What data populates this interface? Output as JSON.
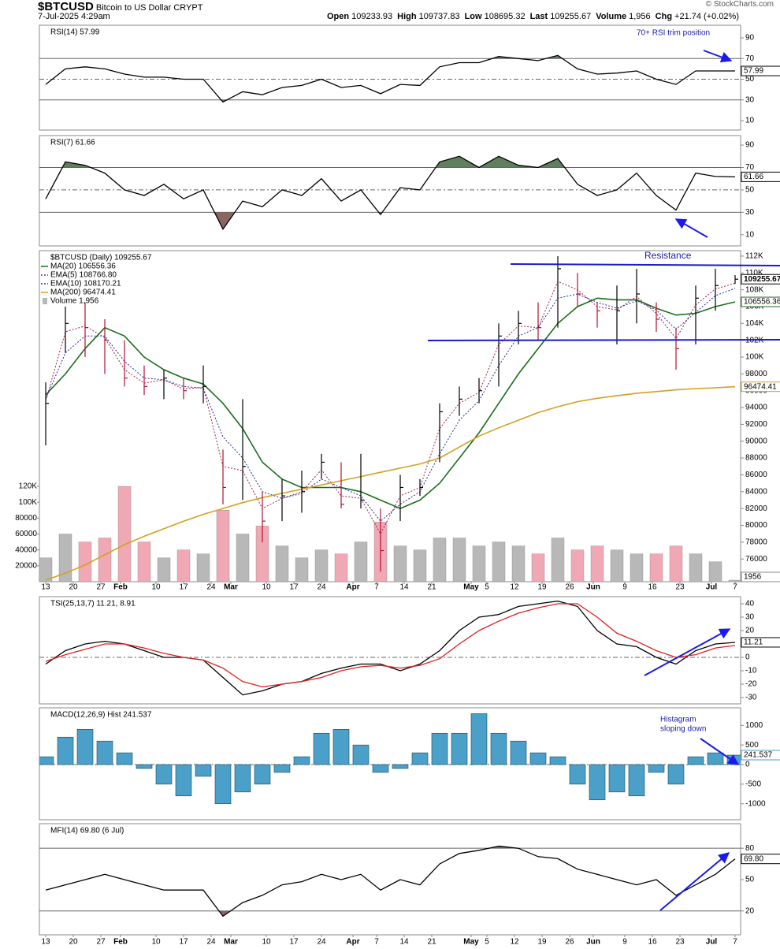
{
  "header": {
    "symbol": "$BTCUSD",
    "name": "Bitcoin to US Dollar",
    "exchange": "CRYPT",
    "date": "7-Jul-2025 4:29am",
    "stats": [
      {
        "label": "Open",
        "value": "109233.93"
      },
      {
        "label": "High",
        "value": "109737.83"
      },
      {
        "label": "Low",
        "value": "108695.32"
      },
      {
        "label": "Last",
        "value": "109255.67"
      },
      {
        "label": "Volume",
        "value": "1,956"
      },
      {
        "label": "Chg",
        "value": "+21.74 (+0.02%)"
      }
    ],
    "copyright": "© StockCharts.com"
  },
  "x_axis": {
    "x": [
      0,
      5,
      10,
      15,
      20,
      25,
      30,
      35,
      40,
      45,
      50,
      55,
      60,
      65,
      70,
      75,
      80,
      85,
      90,
      95,
      100,
      105,
      110,
      115,
      120,
      125,
      130,
      135,
      140,
      145,
      150,
      155,
      160,
      165,
      170,
      175
    ],
    "xlim": [
      -1.6,
      176.4
    ],
    "xticks": [
      {
        "value": 0,
        "label": "13"
      },
      {
        "value": 7,
        "label": "20"
      },
      {
        "value": 14,
        "label": "27"
      },
      {
        "value": 19,
        "label": "Feb"
      },
      {
        "value": 28,
        "label": "10"
      },
      {
        "value": 35,
        "label": "17"
      },
      {
        "value": 42,
        "label": "24"
      },
      {
        "value": 47,
        "label": "Mar"
      },
      {
        "value": 56,
        "label": "10"
      },
      {
        "value": 63,
        "label": "17"
      },
      {
        "value": 70,
        "label": "24"
      },
      {
        "value": 78,
        "label": "Apr"
      },
      {
        "value": 84,
        "label": "7"
      },
      {
        "value": 91,
        "label": "14"
      },
      {
        "value": 98,
        "label": "21"
      },
      {
        "value": 108,
        "label": "May"
      },
      {
        "value": 112,
        "label": "5"
      },
      {
        "value": 119,
        "label": "12"
      },
      {
        "value": 126,
        "label": "19"
      },
      {
        "value": 133,
        "label": "26"
      },
      {
        "value": 139,
        "label": "Jun"
      },
      {
        "value": 147,
        "label": "9"
      },
      {
        "value": 154,
        "label": "16"
      },
      {
        "value": 161,
        "label": "23"
      },
      {
        "value": 169,
        "label": "Jul"
      },
      {
        "value": 175,
        "label": "7"
      }
    ]
  },
  "chart_data": [
    {
      "type": "line",
      "title": "RSI(14) 57.99",
      "ylim": [
        0.9,
        102.2
      ],
      "yticks": [
        10,
        30,
        50,
        70,
        90
      ],
      "bands": [
        30,
        70
      ],
      "midline": 50,
      "fills": {
        "above": "#5f7f5f",
        "below": "#8c6560"
      },
      "annotations": [
        "70+ RSI trim position"
      ],
      "series": [
        {
          "color": "#000000",
          "last_label": true,
          "values": [
            45,
            60,
            62,
            60,
            55,
            52,
            52,
            50,
            50,
            28,
            38,
            35,
            42,
            44,
            50,
            42,
            44,
            36,
            45,
            44,
            62,
            66,
            66,
            72,
            70,
            68,
            73,
            60,
            55,
            56,
            58,
            50,
            45,
            58,
            58,
            57.99
          ]
        }
      ]
    },
    {
      "type": "line",
      "title": "RSI(7) 61.66",
      "ylim": [
        0,
        98.5
      ],
      "yticks": [
        10,
        30,
        50,
        70,
        90
      ],
      "bands": [
        30,
        70
      ],
      "midline": 50,
      "fills": {
        "above": "#5f7f5f",
        "below": "#8c6560"
      },
      "series": [
        {
          "color": "#000000",
          "last_label": true,
          "values": [
            42,
            75,
            72,
            65,
            50,
            45,
            55,
            42,
            50,
            15,
            40,
            35,
            50,
            45,
            60,
            40,
            50,
            28,
            52,
            50,
            75,
            80,
            70,
            80,
            72,
            70,
            78,
            55,
            45,
            50,
            65,
            45,
            32,
            65,
            62,
            61.66
          ]
        }
      ]
    },
    {
      "type": "ohlc",
      "title": "$BTCUSD (Daily) 109255.67",
      "ylim": [
        73300,
        112650
      ],
      "last_label": true,
      "annotations": [
        "Resistance"
      ],
      "yticks": [
        76000,
        78000,
        80000,
        82000,
        84000,
        86000,
        88000,
        90000,
        92000,
        94000,
        96000,
        98000,
        {
          "value": 100000,
          "label": "100K"
        },
        {
          "value": 102000,
          "label": "102K"
        },
        {
          "value": 104000,
          "label": "104K"
        },
        {
          "value": 106000,
          "label": "106K"
        },
        {
          "value": 108000,
          "label": "108K"
        },
        {
          "value": 110000,
          "label": "110K"
        },
        {
          "value": 112000,
          "label": "112K"
        }
      ],
      "up_color": "#000000",
      "down_color": "#b01030",
      "close": [
        94500,
        104000,
        103500,
        102000,
        97500,
        96500,
        97500,
        96000,
        96500,
        84500,
        87000,
        80500,
        83500,
        84000,
        87500,
        82500,
        83000,
        77000,
        84500,
        84500,
        93500,
        95000,
        96000,
        102500,
        104000,
        103500,
        110500,
        107500,
        105500,
        105500,
        107500,
        104500,
        101000,
        107000,
        108500,
        109255.67
      ],
      "high": [
        97000,
        106000,
        106500,
        104500,
        102000,
        99000,
        98500,
        97500,
        99000,
        89000,
        95000,
        84000,
        85500,
        86500,
        88500,
        87500,
        88500,
        82000,
        86000,
        85500,
        94500,
        96500,
        97500,
        104000,
        105500,
        106500,
        112000,
        110000,
        106500,
        108500,
        110500,
        106500,
        103500,
        108500,
        110500,
        109737.83
      ],
      "low": [
        89500,
        100500,
        100000,
        98000,
        96500,
        95500,
        95000,
        95000,
        94500,
        82500,
        83000,
        78000,
        80500,
        81500,
        85500,
        82000,
        82000,
        74500,
        80500,
        83500,
        87500,
        93000,
        94500,
        96500,
        101500,
        102000,
        103500,
        106000,
        103500,
        101500,
        104000,
        103000,
        98500,
        101500,
        105500,
        108695.32
      ],
      "series": [
        {
          "name": "MA(20) 106556.36",
          "color": "#1a6e1a",
          "last_label": true,
          "values": [
            95500,
            98000,
            101000,
            103500,
            102500,
            100000,
            98500,
            97500,
            96800,
            94500,
            91500,
            87500,
            85500,
            84500,
            84500,
            84500,
            84000,
            83000,
            82000,
            83000,
            85000,
            88000,
            91000,
            94500,
            98000,
            101000,
            104000,
            106000,
            107000,
            106800,
            106800,
            105800,
            105000,
            105200,
            106000,
            106556.36
          ]
        },
        {
          "name": "EMA(5) 108766.80",
          "color": "#a0204a",
          "dash": true,
          "values": [
            94800,
            103000,
            103700,
            102300,
            98500,
            96900,
            97300,
            96200,
            96400,
            87000,
            86500,
            82000,
            83200,
            84000,
            86600,
            83500,
            83200,
            79000,
            83500,
            84500,
            91500,
            94500,
            95800,
            101500,
            103700,
            103500,
            109000,
            108000,
            106000,
            105600,
            107200,
            105200,
            102200,
            106200,
            108100,
            108766.8
          ]
        },
        {
          "name": "EMA(10) 108170.21",
          "color": "#2a2a9a",
          "dash": true,
          "values": [
            95000,
            100500,
            102500,
            102500,
            99500,
            97500,
            97300,
            96500,
            96300,
            90500,
            88000,
            84000,
            83200,
            83800,
            85500,
            84500,
            83500,
            80500,
            82500,
            84000,
            88500,
            92500,
            94800,
            99000,
            102500,
            103500,
            107000,
            107500,
            106500,
            105800,
            106700,
            105600,
            103300,
            105300,
            107300,
            108170.21
          ]
        },
        {
          "name": "MA(200) 96474.41",
          "color": "#d4a020",
          "last_label": true,
          "values": [
            73500,
            74300,
            75300,
            76500,
            77700,
            78700,
            79600,
            80500,
            81300,
            82000,
            82700,
            83300,
            83800,
            84300,
            84800,
            85300,
            85800,
            86300,
            86800,
            87300,
            88000,
            89300,
            90600,
            91600,
            92500,
            93400,
            94100,
            94700,
            95100,
            95400,
            95700,
            95900,
            96100,
            96250,
            96350,
            96474.41
          ]
        }
      ],
      "volume": {
        "name": "Volume 1,956",
        "up_color": "#b8b8b8",
        "down_color": "#f0a8b4",
        "last_label": true,
        "ylim": [
          0,
          122000
        ],
        "yticks": [
          20000,
          40000,
          60000,
          80000,
          {
            "value": 100000,
            "label": "100K"
          },
          {
            "value": 120000,
            "label": "120K"
          }
        ],
        "values": [
          30000,
          60000,
          50000,
          55000,
          120000,
          50000,
          30000,
          40000,
          35000,
          90000,
          60000,
          70000,
          45000,
          30000,
          40000,
          35000,
          50000,
          75000,
          45000,
          40000,
          55000,
          55000,
          45000,
          50000,
          45000,
          35000,
          55000,
          40000,
          45000,
          40000,
          35000,
          35000,
          45000,
          35000,
          25000,
          1956
        ]
      }
    },
    {
      "type": "line",
      "title": "TSI(25,13,7) 11.21, 8.91",
      "ylim": [
        -34.7,
        45.3
      ],
      "yticks": [
        -30,
        -20,
        -10,
        0,
        10,
        20,
        30,
        40
      ],
      "midline": 0,
      "series": [
        {
          "color": "#000000",
          "last_label": true,
          "values": [
            -5,
            5,
            10,
            12,
            10,
            5,
            0,
            0,
            -2,
            -15,
            -28,
            -25,
            -20,
            -18,
            -12,
            -8,
            -5,
            -5,
            -10,
            -5,
            5,
            20,
            30,
            32,
            38,
            40,
            42,
            38,
            20,
            10,
            8,
            0,
            -5,
            5,
            10,
            11.21
          ]
        },
        {
          "color": "#e02020",
          "values": [
            -3,
            2,
            6,
            10,
            10,
            7,
            3,
            0,
            -2,
            -8,
            -18,
            -22,
            -20,
            -18,
            -15,
            -10,
            -7,
            -6,
            -8,
            -6,
            -1,
            10,
            20,
            27,
            33,
            37,
            40,
            40,
            30,
            18,
            12,
            5,
            0,
            2,
            7,
            8.91
          ]
        }
      ]
    },
    {
      "type": "bar",
      "title": "MACD(12,26,9) Hist 241.537",
      "ylim": [
        -1408,
        1449
      ],
      "yticks": [
        -1000,
        -500,
        0,
        500,
        1000
      ],
      "midline": 0,
      "annotations": [
        "Histagram",
        "sloping down"
      ],
      "series": [
        {
          "color": "#4aa0c8",
          "last_label": true,
          "values": [
            200,
            700,
            900,
            600,
            300,
            -100,
            -500,
            -800,
            -300,
            -1000,
            -700,
            -500,
            -200,
            200,
            800,
            900,
            500,
            -200,
            -100,
            300,
            800,
            800,
            1300,
            800,
            600,
            300,
            200,
            -500,
            -900,
            -700,
            -800,
            -200,
            -500,
            200,
            300,
            241.537
          ]
        }
      ]
    },
    {
      "type": "line",
      "title": "MFI(14) 69.80 (6 Jul)",
      "ylim": [
        -2.8,
        103.5
      ],
      "yticks": [
        20,
        50,
        80
      ],
      "bands": [
        20,
        80
      ],
      "fills": {
        "above": "#5f7f5f",
        "below": "#8c6560"
      },
      "series": [
        {
          "color": "#000000",
          "last_label": true,
          "values": [
            40,
            45,
            50,
            55,
            50,
            45,
            40,
            40,
            40,
            15,
            28,
            35,
            45,
            48,
            55,
            50,
            55,
            40,
            50,
            45,
            65,
            75,
            78,
            82,
            80,
            72,
            70,
            60,
            55,
            50,
            45,
            50,
            35,
            45,
            55,
            69.8
          ],
          "value_labels": [
            null,
            null,
            null,
            null,
            null,
            null,
            null,
            null,
            null,
            null,
            null,
            null,
            null,
            null,
            null,
            null,
            null,
            null,
            null,
            null,
            null,
            null,
            null,
            null,
            null,
            null,
            null,
            null,
            null,
            null,
            null,
            null,
            null,
            null,
            null,
            "69.80"
          ]
        }
      ]
    }
  ]
}
